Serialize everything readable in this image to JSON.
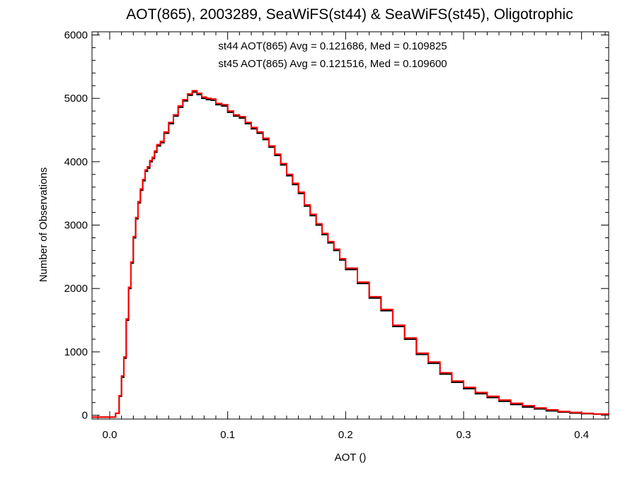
{
  "chart_data": {
    "type": "histogram",
    "title": "AOT(865), 2003289, SeaWiFS(st44) & SeaWiFS(st45), Oligotrophic",
    "xlabel": "AOT ()",
    "ylabel": "Number of Observations",
    "xlim": [
      -0.015,
      0.423
    ],
    "ylim": [
      -60,
      6050
    ],
    "xticks": [
      0.0,
      0.1,
      0.2,
      0.3,
      0.4
    ],
    "xtick_labels": [
      "0.0",
      "0.1",
      "0.2",
      "0.3",
      "0.4"
    ],
    "yticks": [
      0,
      1000,
      2000,
      3000,
      4000,
      5000,
      6000
    ],
    "ytick_labels": [
      "0",
      "1000",
      "2000",
      "3000",
      "4000",
      "5000",
      "6000"
    ],
    "grid": false,
    "annotations": [
      {
        "text": "st44 AOT(865) Avg = 0.121686, Med = 0.109825",
        "color": "#000000"
      },
      {
        "text": "st45 AOT(865) Avg = 0.121516, Med = 0.109600",
        "color": "#ff0000"
      }
    ],
    "series": [
      {
        "color": "#000000",
        "x": [
          -0.015,
          0.0,
          0.005,
          0.008,
          0.01,
          0.012,
          0.014,
          0.016,
          0.018,
          0.02,
          0.022,
          0.024,
          0.026,
          0.028,
          0.03,
          0.032,
          0.034,
          0.036,
          0.038,
          0.04,
          0.043,
          0.046,
          0.05,
          0.054,
          0.058,
          0.062,
          0.066,
          0.07,
          0.074,
          0.078,
          0.082,
          0.086,
          0.09,
          0.095,
          0.1,
          0.105,
          0.11,
          0.115,
          0.12,
          0.125,
          0.13,
          0.135,
          0.14,
          0.145,
          0.15,
          0.155,
          0.16,
          0.165,
          0.17,
          0.175,
          0.18,
          0.185,
          0.19,
          0.195,
          0.2,
          0.21,
          0.22,
          0.23,
          0.24,
          0.25,
          0.26,
          0.27,
          0.28,
          0.29,
          0.3,
          0.31,
          0.32,
          0.33,
          0.34,
          0.35,
          0.36,
          0.37,
          0.38,
          0.39,
          0.4,
          0.41,
          0.423
        ],
        "y": [
          -30,
          -30,
          30,
          300,
          600,
          900,
          1500,
          2000,
          2400,
          2800,
          3100,
          3350,
          3550,
          3700,
          3850,
          3900,
          4000,
          4050,
          4150,
          4250,
          4300,
          4450,
          4600,
          4720,
          4860,
          4960,
          5050,
          5100,
          5060,
          5000,
          4980,
          4970,
          4900,
          4880,
          4780,
          4720,
          4690,
          4600,
          4520,
          4450,
          4350,
          4230,
          4100,
          3950,
          3780,
          3640,
          3500,
          3300,
          3150,
          3000,
          2850,
          2720,
          2600,
          2450,
          2300,
          2080,
          1850,
          1650,
          1400,
          1200,
          960,
          820,
          650,
          520,
          420,
          340,
          280,
          220,
          170,
          130,
          100,
          70,
          50,
          35,
          25,
          18,
          12
        ]
      },
      {
        "color": "#ff0000",
        "x": [
          -0.015,
          0.0,
          0.005,
          0.008,
          0.01,
          0.012,
          0.014,
          0.016,
          0.018,
          0.02,
          0.022,
          0.024,
          0.026,
          0.028,
          0.03,
          0.032,
          0.034,
          0.036,
          0.038,
          0.04,
          0.043,
          0.046,
          0.05,
          0.054,
          0.058,
          0.062,
          0.066,
          0.07,
          0.074,
          0.078,
          0.082,
          0.086,
          0.09,
          0.095,
          0.1,
          0.105,
          0.11,
          0.115,
          0.12,
          0.125,
          0.13,
          0.135,
          0.14,
          0.145,
          0.15,
          0.155,
          0.16,
          0.165,
          0.17,
          0.175,
          0.18,
          0.185,
          0.19,
          0.195,
          0.2,
          0.21,
          0.22,
          0.23,
          0.24,
          0.25,
          0.26,
          0.27,
          0.28,
          0.29,
          0.3,
          0.31,
          0.32,
          0.33,
          0.34,
          0.35,
          0.36,
          0.37,
          0.38,
          0.39,
          0.4,
          0.41,
          0.423
        ],
        "y": [
          -30,
          -30,
          30,
          310,
          620,
          920,
          1520,
          2020,
          2420,
          2820,
          3120,
          3370,
          3570,
          3720,
          3870,
          3920,
          4020,
          4070,
          4170,
          4270,
          4320,
          4470,
          4620,
          4740,
          4880,
          4980,
          5070,
          5120,
          5080,
          5020,
          5000,
          4990,
          4920,
          4900,
          4800,
          4740,
          4710,
          4620,
          4540,
          4470,
          4370,
          4250,
          4120,
          3970,
          3800,
          3660,
          3520,
          3320,
          3170,
          3020,
          2870,
          2740,
          2620,
          2470,
          2320,
          2100,
          1870,
          1670,
          1420,
          1220,
          980,
          840,
          670,
          540,
          440,
          360,
          300,
          240,
          190,
          150,
          115,
          85,
          60,
          45,
          30,
          20,
          12
        ]
      }
    ]
  }
}
